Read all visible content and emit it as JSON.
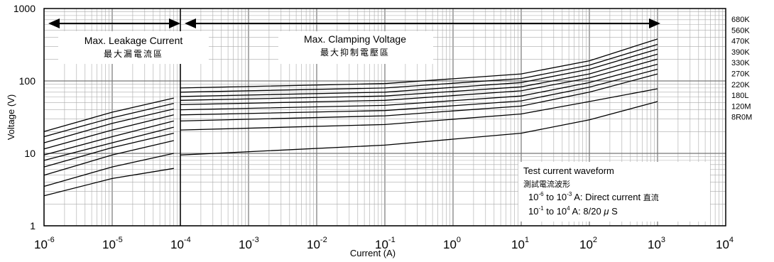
{
  "chart_data": {
    "type": "line",
    "title": "",
    "xlabel": "Current (A)",
    "ylabel": "Voltage (V)",
    "x_scale": "log",
    "y_scale": "log",
    "xlim": [
      1e-06,
      10000
    ],
    "ylim": [
      1,
      1000
    ],
    "x_tick_labels": [
      {
        "base": "10",
        "exp": "-6"
      },
      {
        "base": "10",
        "exp": "-5"
      },
      {
        "base": "10",
        "exp": "-4"
      },
      {
        "base": "10",
        "exp": "-3"
      },
      {
        "base": "10",
        "exp": "-2"
      },
      {
        "base": "10",
        "exp": "-1"
      },
      {
        "base": "10",
        "exp": "0"
      },
      {
        "base": "10",
        "exp": "1"
      },
      {
        "base": "10",
        "exp": "2"
      },
      {
        "base": "10",
        "exp": "3"
      },
      {
        "base": "10",
        "exp": "4"
      }
    ],
    "y_tick_labels": [
      "1",
      "10",
      "100",
      "1000"
    ],
    "grid": true,
    "legend_position": "right",
    "regions": {
      "leakage": {
        "label": "Max. Leakage Current",
        "label_cn": "最大漏電流區",
        "x_range": [
          1e-06,
          0.0001
        ]
      },
      "clamping": {
        "label": "Max. Clamping Voltage",
        "label_cn": "最大抑制電壓區",
        "x_range": [
          0.0001,
          1000
        ]
      }
    },
    "annotation": {
      "title": "Test current waveform",
      "title_cn": "測試電流波形",
      "line1": {
        "from": "10",
        "from_exp": "-6",
        "to_word": "to",
        "to": "10",
        "to_exp": "-3",
        "text": "A: Direct current",
        "cn": "直流"
      },
      "line2": {
        "from": "10",
        "from_exp": "-1",
        "to_word": "to",
        "to": "10",
        "to_exp": "4",
        "text": "A: 8/20",
        "mu": "μ",
        "unit": "S"
      }
    },
    "series": [
      {
        "name": "680K",
        "leakage": {
          "x": [
            1e-06,
            1e-05,
            8e-05
          ],
          "y": [
            20,
            37,
            58
          ]
        },
        "clamping": {
          "x": [
            0.0001,
            0.1,
            10,
            100,
            1000
          ],
          "y": [
            80,
            92,
            125,
            190,
            380
          ]
        }
      },
      {
        "name": "560K",
        "leakage": {
          "x": [
            1e-06,
            1e-05,
            8e-05
          ],
          "y": [
            17,
            31,
            49
          ]
        },
        "clamping": {
          "x": [
            0.0001,
            0.1,
            10,
            100,
            1000
          ],
          "y": [
            70,
            80,
            108,
            165,
            320
          ]
        }
      },
      {
        "name": "470K",
        "leakage": {
          "x": [
            1e-06,
            1e-05,
            8e-05
          ],
          "y": [
            14,
            26,
            41
          ]
        },
        "clamping": {
          "x": [
            0.0001,
            0.1,
            10,
            100,
            1000
          ],
          "y": [
            61,
            70,
            95,
            145,
            275
          ]
        }
      },
      {
        "name": "390K",
        "leakage": {
          "x": [
            1e-06,
            1e-05,
            8e-05
          ],
          "y": [
            11.5,
            21,
            34
          ]
        },
        "clamping": {
          "x": [
            0.0001,
            0.1,
            10,
            100,
            1000
          ],
          "y": [
            54,
            62,
            83,
            125,
            235
          ]
        }
      },
      {
        "name": "330K",
        "leakage": {
          "x": [
            1e-06,
            1e-05,
            8e-05
          ],
          "y": [
            9.5,
            17,
            28
          ]
        },
        "clamping": {
          "x": [
            0.0001,
            0.1,
            10,
            100,
            1000
          ],
          "y": [
            47,
            54,
            73,
            110,
            200
          ]
        }
      },
      {
        "name": "270K",
        "leakage": {
          "x": [
            1e-06,
            1e-05,
            8e-05
          ],
          "y": [
            8,
            14,
            23
          ]
        },
        "clamping": {
          "x": [
            0.0001,
            0.1,
            10,
            100,
            1000
          ],
          "y": [
            40,
            46,
            62,
            95,
            170
          ]
        }
      },
      {
        "name": "220K",
        "leakage": {
          "x": [
            1e-06,
            1e-05,
            8e-05
          ],
          "y": [
            6.5,
            12,
            19
          ]
        },
        "clamping": {
          "x": [
            0.0001,
            0.1,
            10,
            100,
            1000
          ],
          "y": [
            34,
            39,
            53,
            82,
            145
          ]
        }
      },
      {
        "name": "180L",
        "leakage": {
          "x": [
            1e-06,
            1e-05,
            8e-05
          ],
          "y": [
            5,
            9.5,
            15
          ]
        },
        "clamping": {
          "x": [
            0.0001,
            0.1,
            10,
            100,
            1000
          ],
          "y": [
            28,
            33,
            45,
            70,
            125
          ]
        }
      },
      {
        "name": "120M",
        "leakage": {
          "x": [
            1e-06,
            1e-05,
            8e-05
          ],
          "y": [
            3.5,
            6.5,
            10
          ]
        },
        "clamping": {
          "x": [
            0.0001,
            0.1,
            10,
            100,
            1000
          ],
          "y": [
            21,
            25,
            35,
            52,
            78
          ]
        }
      },
      {
        "name": "8R0M",
        "leakage": {
          "x": [
            1e-06,
            1e-05,
            8e-05
          ],
          "y": [
            2.6,
            4.5,
            6.2
          ]
        },
        "clamping": {
          "x": [
            0.0001,
            0.1,
            10,
            100,
            1000
          ],
          "y": [
            9.5,
            13,
            19,
            29,
            52
          ]
        }
      }
    ],
    "colors": {
      "line": "#000000",
      "grid": "#aaaaaa",
      "background": "#ffffff"
    }
  }
}
